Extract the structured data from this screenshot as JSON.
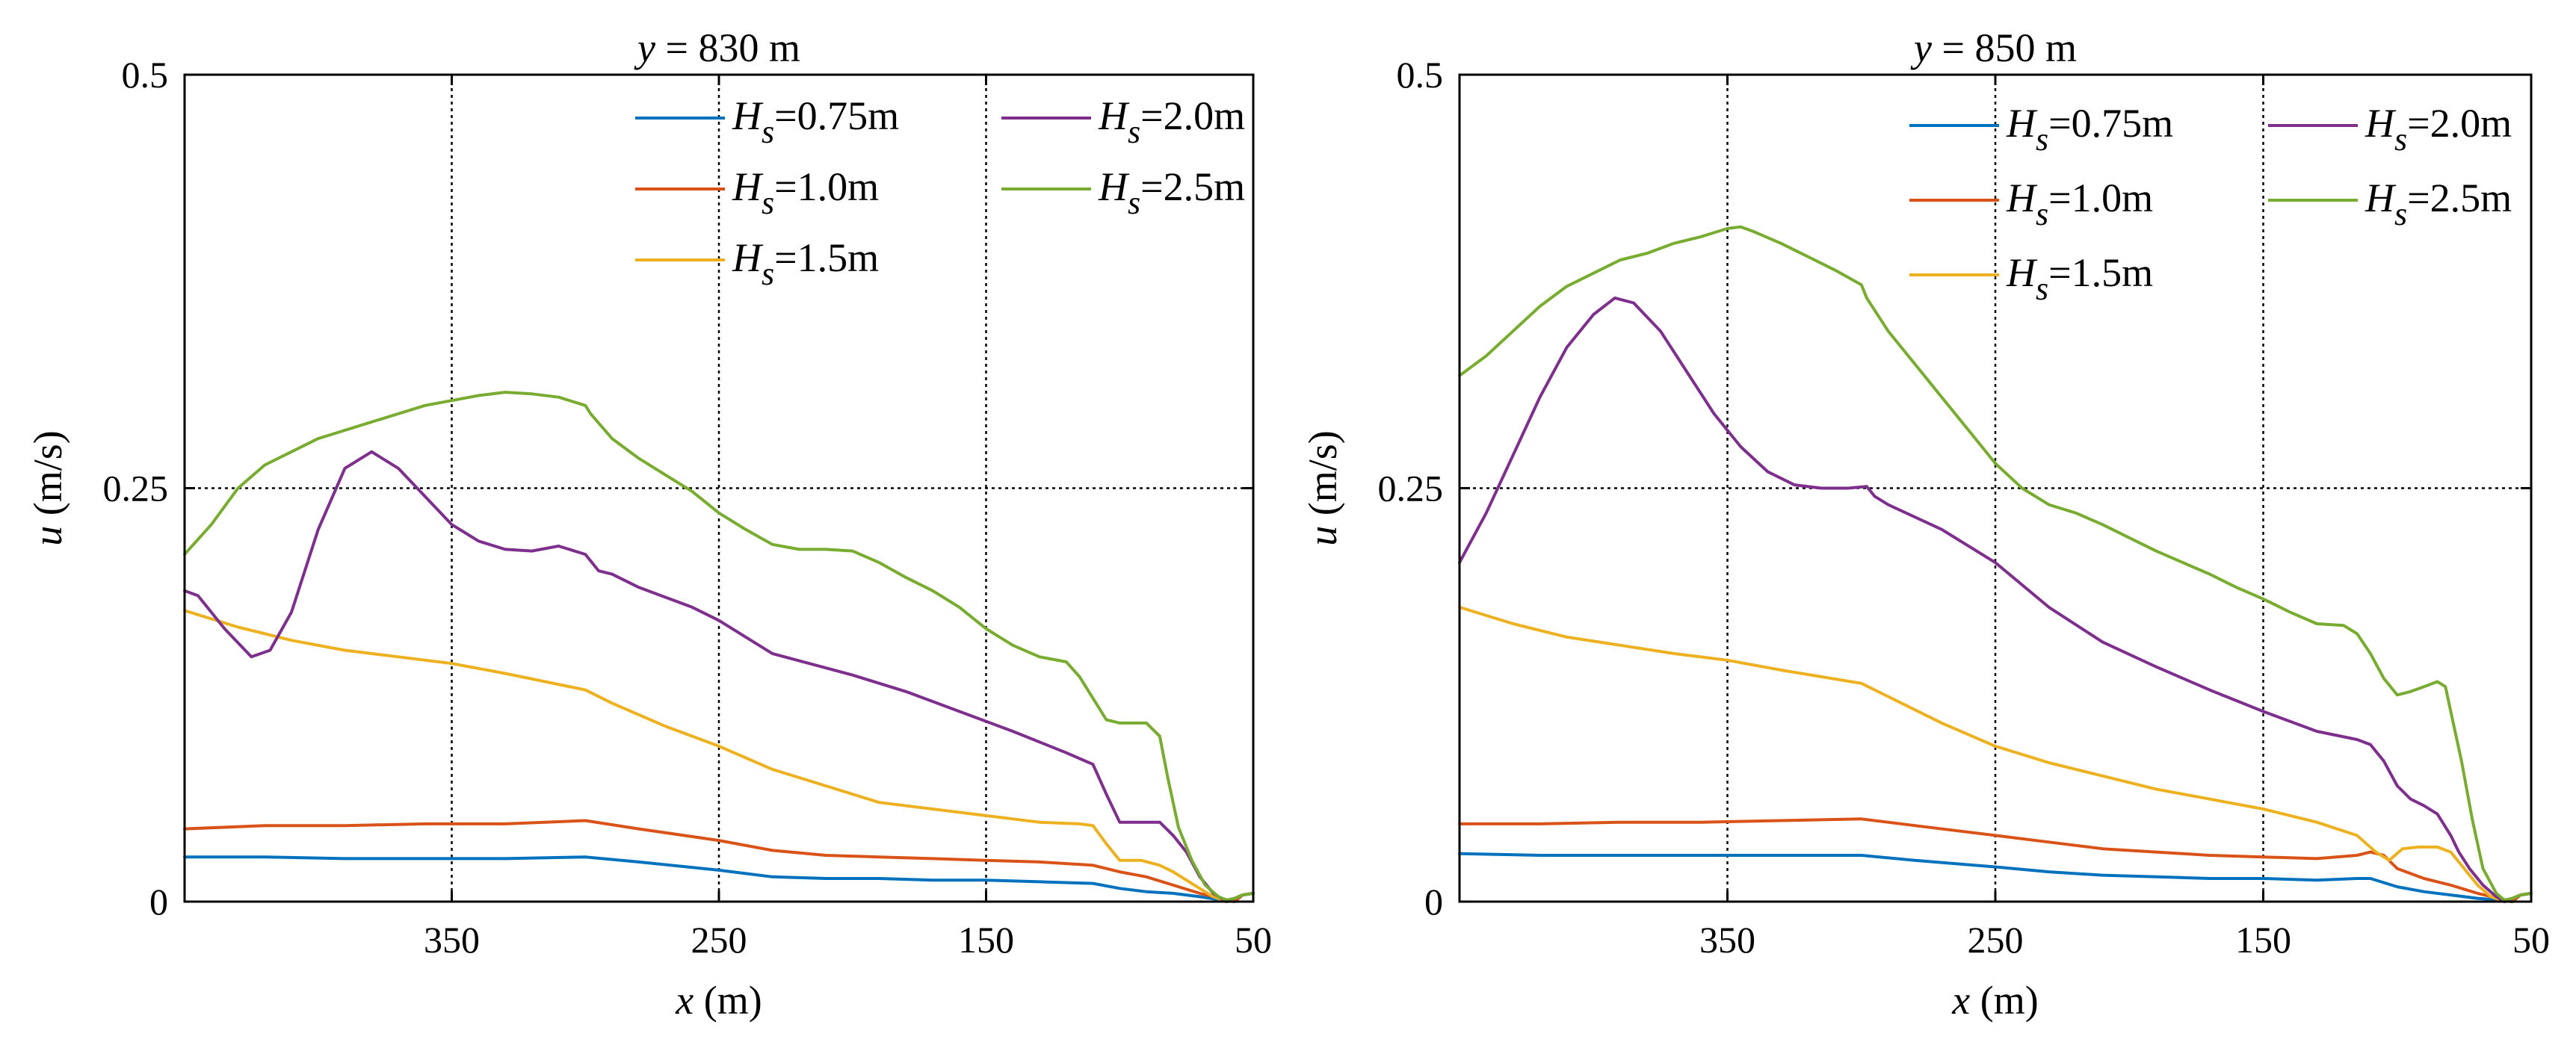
{
  "chart_data": [
    {
      "type": "line",
      "title_var": "y",
      "title_val": " = 830 m",
      "xlabel_var": "x",
      "xlabel_unit": " (m)",
      "ylabel_var": "u",
      "ylabel_unit": " (m/s)",
      "xlim": [
        450,
        50
      ],
      "ylim": [
        0,
        0.5
      ],
      "xticks": [
        350,
        250,
        150,
        50
      ],
      "xtick_labels": [
        "350",
        "250",
        "150",
        "50"
      ],
      "yticks": [
        0,
        0.25,
        0.5
      ],
      "ytick_labels": [
        "0",
        "0.25",
        "0.5"
      ],
      "grid": true,
      "legend_position": "top-right",
      "series": [
        {
          "name": "Hs=0.75m",
          "label_var": "H",
          "label_sub": "s",
          "label_val": "=0.75m",
          "color": "#0072BD",
          "x": [
            450,
            420,
            390,
            360,
            330,
            300,
            280,
            250,
            230,
            210,
            190,
            170,
            150,
            130,
            110,
            100,
            90,
            80,
            70,
            62,
            57,
            54,
            50
          ],
          "y": [
            0.027,
            0.027,
            0.026,
            0.026,
            0.026,
            0.027,
            0.024,
            0.019,
            0.015,
            0.014,
            0.014,
            0.013,
            0.013,
            0.012,
            0.011,
            0.008,
            0.006,
            0.005,
            0.003,
            0.001,
            0.0,
            0.004,
            0.005
          ]
        },
        {
          "name": "Hs=1.0m",
          "label_var": "H",
          "label_sub": "s",
          "label_val": "=1.0m",
          "color": "#D95319",
          "x": [
            450,
            420,
            390,
            360,
            330,
            300,
            280,
            250,
            230,
            210,
            190,
            170,
            150,
            130,
            110,
            100,
            90,
            80,
            70,
            62,
            57,
            54,
            50
          ],
          "y": [
            0.044,
            0.046,
            0.046,
            0.047,
            0.047,
            0.049,
            0.044,
            0.037,
            0.031,
            0.028,
            0.027,
            0.026,
            0.025,
            0.024,
            0.022,
            0.018,
            0.015,
            0.01,
            0.005,
            0.002,
            0.0,
            0.004,
            0.005
          ]
        },
        {
          "name": "Hs=1.5m",
          "label_var": "H",
          "label_sub": "s",
          "label_val": "=1.5m",
          "color": "#EDB120",
          "x": [
            450,
            430,
            410,
            390,
            370,
            350,
            330,
            300,
            290,
            270,
            250,
            230,
            210,
            190,
            170,
            150,
            130,
            115,
            110,
            105,
            100,
            92,
            85,
            80,
            72,
            65,
            60,
            57,
            54,
            50
          ],
          "y": [
            0.176,
            0.166,
            0.158,
            0.152,
            0.148,
            0.144,
            0.138,
            0.128,
            0.12,
            0.106,
            0.094,
            0.08,
            0.07,
            0.06,
            0.056,
            0.052,
            0.048,
            0.047,
            0.046,
            0.035,
            0.025,
            0.025,
            0.022,
            0.018,
            0.01,
            0.003,
            0.0,
            0.002,
            0.004,
            0.005
          ]
        },
        {
          "name": "Hs=2.0m",
          "label_var": "H",
          "label_sub": "s",
          "label_val": "=2.0m",
          "color": "#7E2F8E",
          "x": [
            450,
            445,
            435,
            425,
            418,
            410,
            400,
            390,
            380,
            370,
            360,
            350,
            340,
            330,
            320,
            310,
            300,
            295,
            290,
            280,
            260,
            250,
            240,
            230,
            200,
            180,
            160,
            140,
            120,
            110,
            105,
            100,
            95,
            85,
            80,
            75,
            70,
            65,
            60,
            57,
            54,
            50
          ],
          "y": [
            0.188,
            0.185,
            0.165,
            0.148,
            0.152,
            0.175,
            0.225,
            0.262,
            0.272,
            0.262,
            0.245,
            0.228,
            0.218,
            0.213,
            0.212,
            0.215,
            0.21,
            0.2,
            0.198,
            0.19,
            0.178,
            0.17,
            0.16,
            0.15,
            0.137,
            0.127,
            0.115,
            0.103,
            0.09,
            0.083,
            0.065,
            0.048,
            0.048,
            0.048,
            0.04,
            0.03,
            0.015,
            0.005,
            0.0,
            0.002,
            0.004,
            0.005
          ]
        },
        {
          "name": "Hs=2.5m",
          "label_var": "H",
          "label_sub": "s",
          "label_val": "=2.5m",
          "color": "#77AC30",
          "x": [
            450,
            440,
            430,
            420,
            410,
            400,
            390,
            380,
            370,
            360,
            350,
            340,
            330,
            320,
            310,
            300,
            298,
            290,
            280,
            270,
            260,
            250,
            240,
            230,
            220,
            210,
            200,
            190,
            180,
            170,
            160,
            150,
            140,
            130,
            120,
            115,
            110,
            105,
            100,
            95,
            90,
            85,
            82,
            78,
            73,
            68,
            63,
            60,
            57,
            54,
            50
          ],
          "y": [
            0.21,
            0.228,
            0.25,
            0.264,
            0.272,
            0.28,
            0.285,
            0.29,
            0.295,
            0.3,
            0.303,
            0.306,
            0.308,
            0.307,
            0.305,
            0.3,
            0.295,
            0.28,
            0.268,
            0.258,
            0.248,
            0.235,
            0.225,
            0.216,
            0.213,
            0.213,
            0.212,
            0.205,
            0.196,
            0.188,
            0.178,
            0.165,
            0.155,
            0.148,
            0.145,
            0.136,
            0.123,
            0.11,
            0.108,
            0.108,
            0.108,
            0.1,
            0.075,
            0.045,
            0.025,
            0.01,
            0.003,
            0.001,
            0.002,
            0.004,
            0.005
          ]
        }
      ]
    },
    {
      "type": "line",
      "title_var": "y",
      "title_val": " = 850 m",
      "xlabel_var": "x",
      "xlabel_unit": " (m)",
      "ylabel_var": "u",
      "ylabel_unit": " (m/s)",
      "xlim": [
        450,
        50
      ],
      "ylim": [
        0,
        0.5
      ],
      "xticks": [
        350,
        250,
        150,
        50
      ],
      "xtick_labels": [
        "350",
        "250",
        "150",
        "50"
      ],
      "yticks": [
        0,
        0.25,
        0.5
      ],
      "ytick_labels": [
        "0",
        "0.25",
        "0.5"
      ],
      "grid": true,
      "legend_position": "top-right",
      "series": [
        {
          "name": "Hs=0.75m",
          "label_var": "H",
          "label_sub": "s",
          "label_val": "=0.75m",
          "color": "#0072BD",
          "x": [
            450,
            420,
            390,
            360,
            330,
            300,
            280,
            250,
            230,
            210,
            190,
            170,
            150,
            130,
            115,
            110,
            100,
            90,
            80,
            70,
            62,
            57,
            54,
            50
          ],
          "y": [
            0.029,
            0.028,
            0.028,
            0.028,
            0.028,
            0.028,
            0.025,
            0.021,
            0.018,
            0.016,
            0.015,
            0.014,
            0.014,
            0.013,
            0.014,
            0.014,
            0.009,
            0.006,
            0.004,
            0.002,
            0.001,
            0.0,
            0.004,
            0.005
          ]
        },
        {
          "name": "Hs=1.0m",
          "label_var": "H",
          "label_sub": "s",
          "label_val": "=1.0m",
          "color": "#D95319",
          "x": [
            450,
            420,
            390,
            360,
            330,
            300,
            280,
            250,
            230,
            210,
            190,
            170,
            150,
            130,
            115,
            110,
            105,
            100,
            90,
            80,
            70,
            62,
            57,
            54,
            50
          ],
          "y": [
            0.047,
            0.047,
            0.048,
            0.048,
            0.049,
            0.05,
            0.046,
            0.04,
            0.036,
            0.032,
            0.03,
            0.028,
            0.027,
            0.026,
            0.028,
            0.03,
            0.028,
            0.02,
            0.014,
            0.01,
            0.005,
            0.002,
            0.0,
            0.004,
            0.005
          ]
        },
        {
          "name": "Hs=1.5m",
          "label_var": "H",
          "label_sub": "s",
          "label_val": "=1.5m",
          "color": "#EDB120",
          "x": [
            450,
            430,
            410,
            390,
            370,
            350,
            330,
            300,
            290,
            270,
            250,
            230,
            210,
            190,
            170,
            150,
            130,
            115,
            108,
            103,
            98,
            92,
            85,
            80,
            75,
            70,
            65,
            60,
            57,
            54,
            50
          ],
          "y": [
            0.178,
            0.168,
            0.16,
            0.155,
            0.15,
            0.146,
            0.14,
            0.132,
            0.124,
            0.108,
            0.094,
            0.084,
            0.076,
            0.068,
            0.062,
            0.056,
            0.048,
            0.04,
            0.03,
            0.025,
            0.032,
            0.033,
            0.033,
            0.03,
            0.02,
            0.01,
            0.003,
            0.0,
            0.002,
            0.004,
            0.005
          ]
        },
        {
          "name": "Hs=2.0m",
          "label_var": "H",
          "label_sub": "s",
          "label_val": "=2.0m",
          "color": "#7E2F8E",
          "x": [
            450,
            440,
            430,
            420,
            410,
            400,
            392,
            385,
            375,
            365,
            355,
            345,
            335,
            325,
            315,
            305,
            298,
            295,
            290,
            270,
            250,
            230,
            210,
            190,
            170,
            150,
            130,
            115,
            110,
            105,
            100,
            95,
            90,
            85,
            80,
            77,
            73,
            68,
            63,
            60,
            57,
            54,
            50
          ],
          "y": [
            0.205,
            0.235,
            0.27,
            0.305,
            0.335,
            0.355,
            0.365,
            0.362,
            0.345,
            0.32,
            0.295,
            0.275,
            0.26,
            0.252,
            0.25,
            0.25,
            0.251,
            0.245,
            0.24,
            0.225,
            0.205,
            0.178,
            0.157,
            0.142,
            0.128,
            0.115,
            0.103,
            0.098,
            0.095,
            0.085,
            0.07,
            0.062,
            0.058,
            0.053,
            0.04,
            0.03,
            0.02,
            0.01,
            0.003,
            0.0,
            0.002,
            0.004,
            0.005
          ]
        },
        {
          "name": "Hs=2.5m",
          "label_var": "H",
          "label_sub": "s",
          "label_val": "=2.5m",
          "color": "#77AC30",
          "x": [
            450,
            440,
            430,
            420,
            410,
            400,
            390,
            380,
            370,
            360,
            350,
            345,
            340,
            330,
            320,
            310,
            300,
            298,
            290,
            280,
            270,
            260,
            250,
            240,
            230,
            220,
            210,
            200,
            190,
            180,
            170,
            160,
            150,
            140,
            130,
            120,
            115,
            110,
            105,
            100,
            95,
            90,
            85,
            82,
            80,
            76,
            72,
            68,
            63,
            60,
            57,
            54,
            50
          ],
          "y": [
            0.318,
            0.33,
            0.345,
            0.36,
            0.372,
            0.38,
            0.388,
            0.392,
            0.398,
            0.402,
            0.407,
            0.408,
            0.405,
            0.398,
            0.39,
            0.382,
            0.373,
            0.365,
            0.345,
            0.325,
            0.305,
            0.285,
            0.265,
            0.25,
            0.24,
            0.235,
            0.228,
            0.22,
            0.212,
            0.205,
            0.198,
            0.19,
            0.183,
            0.175,
            0.168,
            0.167,
            0.162,
            0.15,
            0.135,
            0.125,
            0.127,
            0.13,
            0.133,
            0.13,
            0.115,
            0.085,
            0.05,
            0.02,
            0.005,
            0.001,
            0.002,
            0.004,
            0.005
          ]
        }
      ]
    }
  ]
}
